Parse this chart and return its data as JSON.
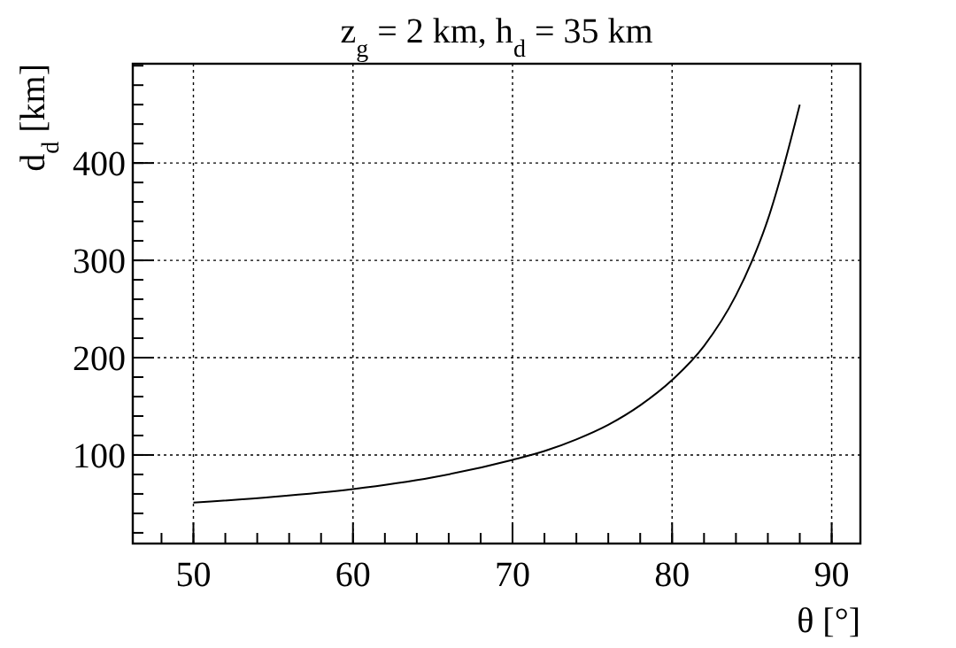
{
  "chart_data": {
    "type": "line",
    "title": "z$_{g}$ = 2 km, h$_{d}$ = 35 km",
    "xlabel": "θ [°]",
    "ylabel": "d$_{d}$ [km]",
    "x": [
      50,
      55,
      60,
      65,
      70,
      72,
      74,
      76,
      78,
      80,
      82,
      84,
      85,
      86,
      87,
      88
    ],
    "series": [
      {
        "color": "#000000",
        "values": [
          51,
          57,
          65,
          77,
          95,
          104,
          116,
          131,
          151,
          177,
          212,
          264,
          299,
          342,
          397,
          460
        ]
      }
    ],
    "xlim": [
      46.2,
      91.8
    ],
    "ylim": [
      9,
      502
    ],
    "xticks": [
      50,
      60,
      70,
      80,
      90
    ],
    "yticks": [
      100,
      200,
      300,
      400
    ],
    "grid": true,
    "marker": "none",
    "line_style": "solid"
  }
}
